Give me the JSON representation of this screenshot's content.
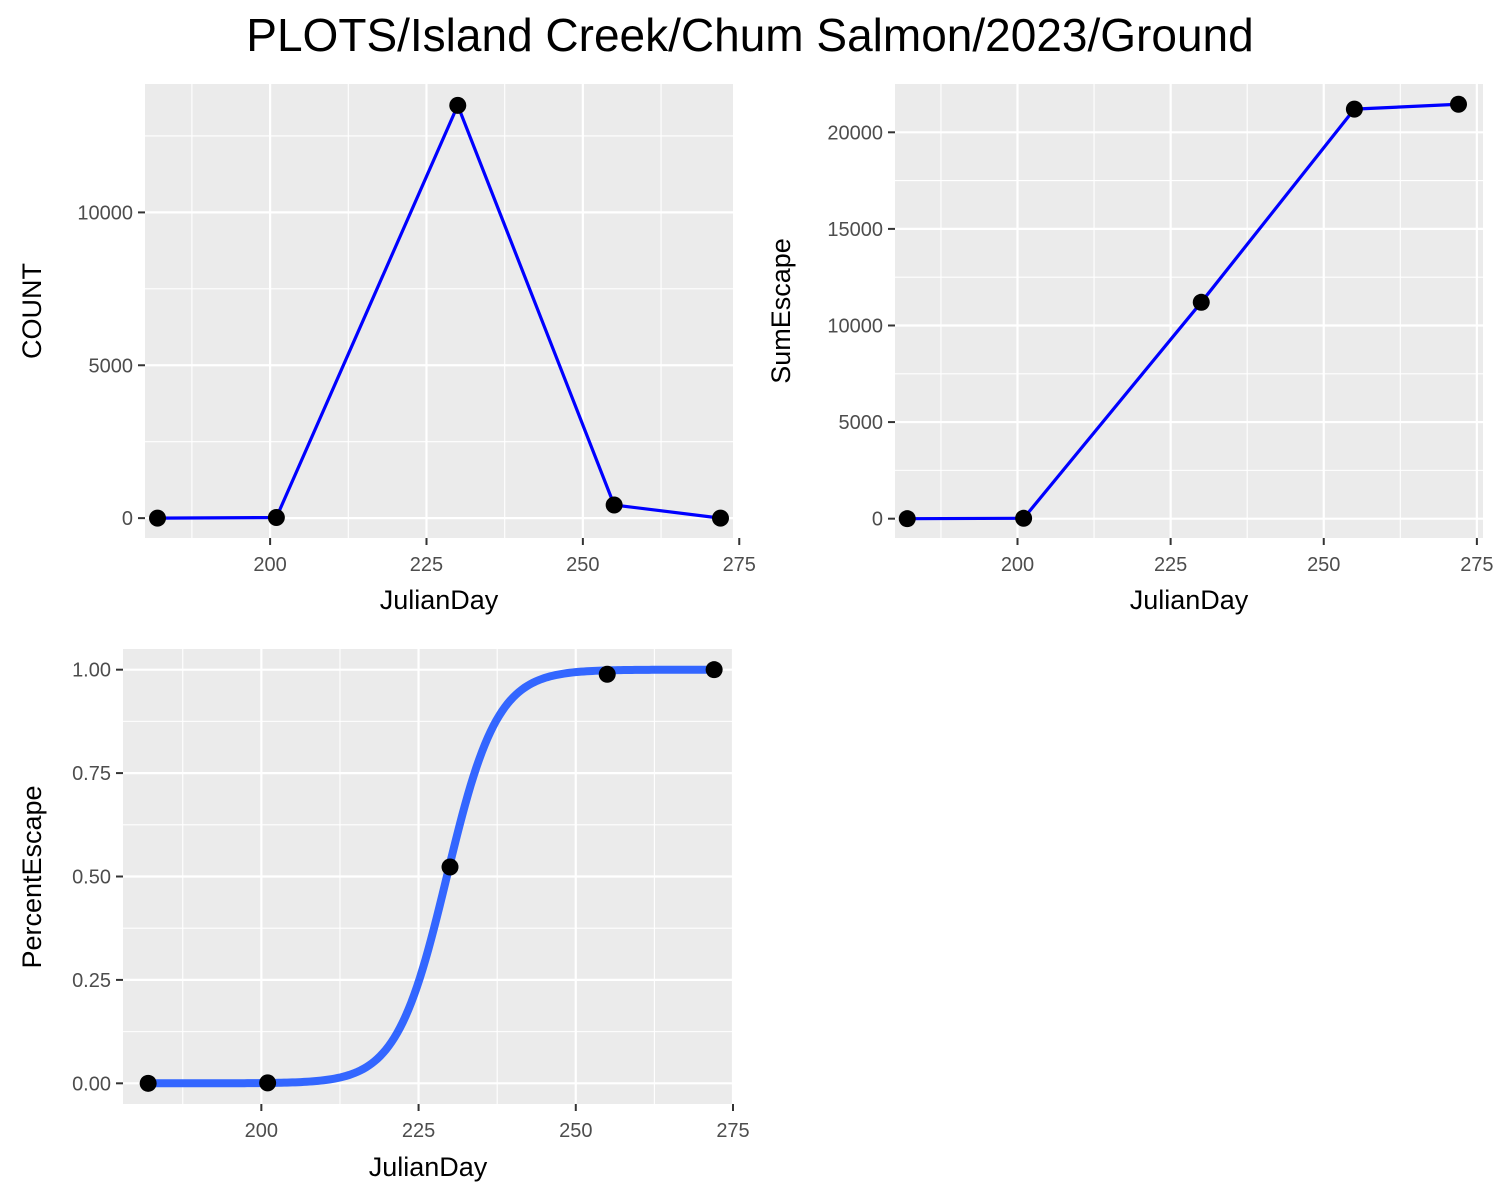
{
  "title": "PLOTS/Island Creek/Chum Salmon/2023/Ground",
  "colors": {
    "panel_bg": "#ebebeb",
    "grid_major": "#ffffff",
    "line_raw": "#0000ff",
    "line_fit": "#3366ff",
    "point": "#000000",
    "tick_text": "#4d4d4d"
  },
  "chart_data": [
    {
      "id": "count",
      "type": "line",
      "xlabel": "JulianDay",
      "ylabel": "COUNT",
      "xlim": [
        180,
        274
      ],
      "ylim": [
        -650,
        14200
      ],
      "xticks": [
        200,
        225,
        250,
        275
      ],
      "xtick_labels": [
        "200",
        "225",
        "250",
        "275"
      ],
      "yticks": [
        0,
        5000,
        10000
      ],
      "ytick_labels": [
        "0",
        "5000",
        "10000"
      ],
      "grid": true,
      "series": [
        {
          "x": [
            182,
            201,
            230,
            255,
            272
          ],
          "y": [
            0,
            20,
            13500,
            430,
            0
          ]
        }
      ]
    },
    {
      "id": "sumescape",
      "type": "line",
      "xlabel": "JulianDay",
      "ylabel": "SumEscape",
      "xlim": [
        180,
        276
      ],
      "ylim": [
        -1000,
        22500
      ],
      "xticks": [
        200,
        225,
        250,
        275
      ],
      "xtick_labels": [
        "200",
        "225",
        "250",
        "275"
      ],
      "yticks": [
        0,
        5000,
        10000,
        15000,
        20000
      ],
      "ytick_labels": [
        "0",
        "5000",
        "10000",
        "15000",
        "20000"
      ],
      "grid": true,
      "series": [
        {
          "x": [
            182,
            201,
            230,
            255,
            272
          ],
          "y": [
            0,
            20,
            11200,
            21200,
            21450
          ]
        }
      ]
    },
    {
      "id": "percentescape",
      "type": "line",
      "xlabel": "JulianDay",
      "ylabel": "PercentEscape",
      "xlim": [
        178,
        275
      ],
      "ylim": [
        -0.05,
        1.05
      ],
      "xticks": [
        200,
        225,
        250,
        275
      ],
      "xtick_labels": [
        "200",
        "225",
        "250",
        "275"
      ],
      "yticks": [
        0,
        0.25,
        0.5,
        0.75,
        1.0
      ],
      "ytick_labels": [
        "0.00",
        "0.25",
        "0.50",
        "0.75",
        "1.00"
      ],
      "grid": true,
      "points": {
        "x": [
          182,
          201,
          230,
          255,
          272
        ],
        "y": [
          0,
          0.001,
          0.523,
          0.989,
          1.0
        ]
      },
      "fit": {
        "model": "logistic",
        "midpoint": 229.5,
        "scale": 4.0,
        "x_range": [
          182,
          272
        ]
      }
    }
  ]
}
